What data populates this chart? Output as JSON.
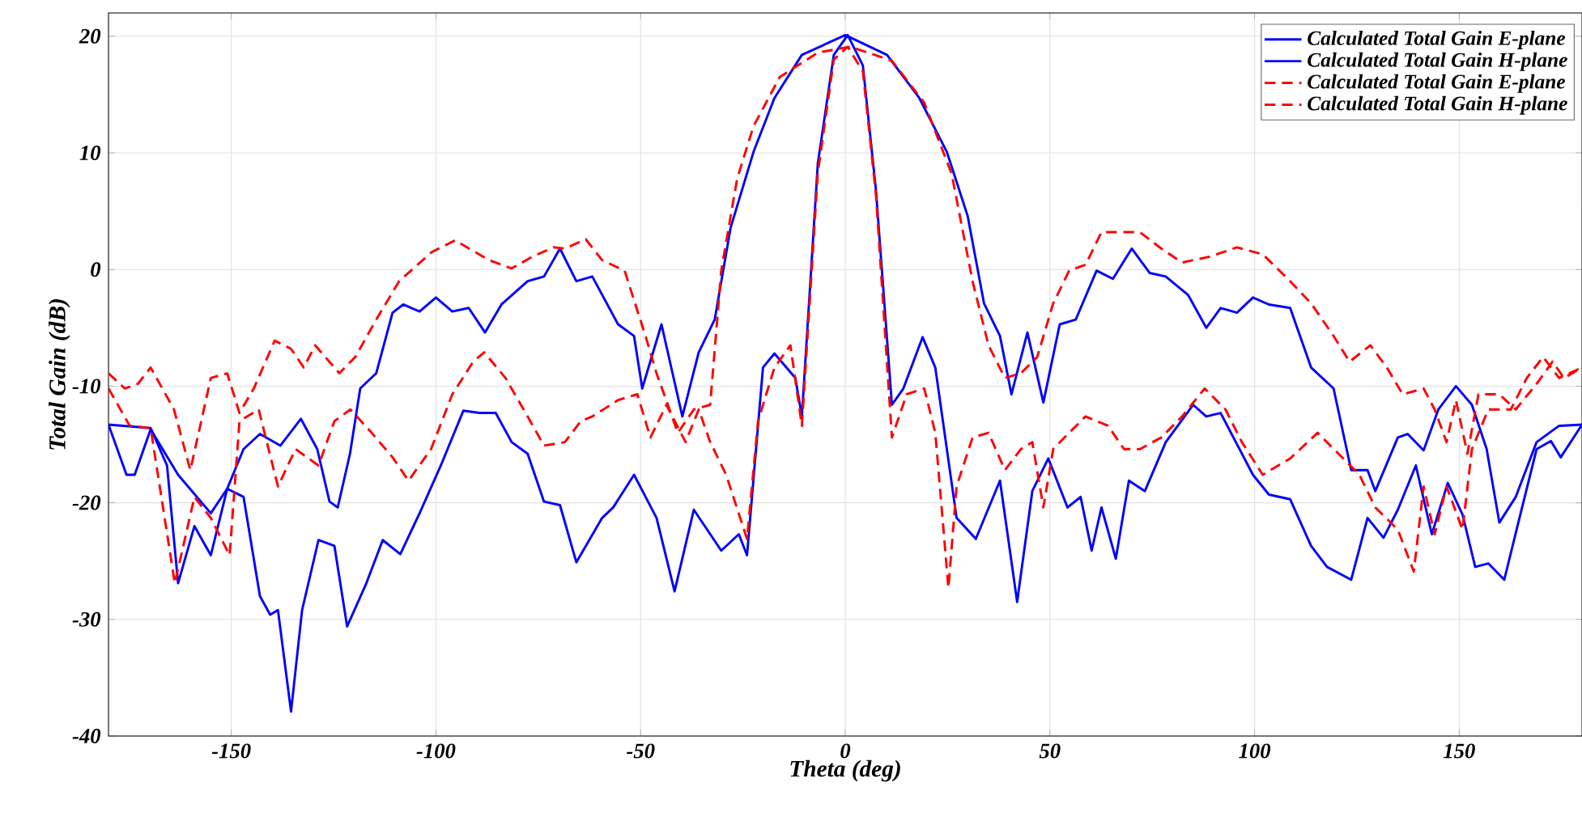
{
  "chart_data": {
    "type": "line",
    "xlabel": "Theta (deg)",
    "ylabel": "Total Gain (dB)",
    "xlim": [
      -180,
      180
    ],
    "ylim": [
      -40,
      22
    ],
    "xticks": [
      -150,
      -100,
      -50,
      0,
      50,
      100,
      150
    ],
    "yticks": [
      -40,
      -30,
      -20,
      -10,
      0,
      10,
      20
    ],
    "grid": true,
    "legend": "top right",
    "marker": "none",
    "series": [
      {
        "name": "Calculated Total Gain E-plane",
        "color": "#0000ff",
        "line_style": "solid",
        "x": [
          -180,
          -175.6,
          -173.6,
          -169.7,
          -163,
          -155,
          -151,
          -147,
          -143,
          -138,
          -133,
          -129,
          -126,
          -124,
          -121,
          -118.5,
          -114.6,
          -110.6,
          -108,
          -104,
          -100,
          -96,
          -92,
          -88,
          -84,
          -77.6,
          -73.6,
          -69.7,
          -65.7,
          -61.8,
          -55.5,
          -51.6,
          -49.6,
          -44.9,
          -39.8,
          -35.8,
          -31.9,
          -28,
          -22.4,
          -17.3,
          -10.6,
          0,
          10.2,
          18.1,
          24.8,
          29.9,
          33.9,
          37.8,
          40.6,
          44.5,
          48.4,
          52.4,
          56.3,
          61.4,
          65.4,
          70,
          74.4,
          78.3,
          83.8,
          88.2,
          91.7,
          95.7,
          99.6,
          103.5,
          108.7,
          113.8,
          119.3,
          123.6,
          127.6,
          129.5,
          135,
          137.4,
          141.3,
          144.9,
          149.2,
          153.1,
          156.7,
          159.8,
          163.8,
          168.9,
          174.4,
          180
        ],
        "values": [
          -13.3,
          -17.6,
          -17.6,
          -13.7,
          -17.6,
          -20.9,
          -18.8,
          -15.4,
          -14.1,
          -15.1,
          -12.8,
          -15.4,
          -19.9,
          -20.4,
          -15.8,
          -10.2,
          -8.9,
          -3.7,
          -3.0,
          -3.6,
          -2.4,
          -3.6,
          -3.3,
          -5.4,
          -3.0,
          -1.0,
          -0.6,
          1.8,
          -1.0,
          -0.6,
          -4.7,
          -5.7,
          -10.2,
          -4.7,
          -12.6,
          -7.1,
          -4.3,
          3.6,
          10.1,
          14.7,
          18.4,
          20.1,
          18.4,
          14.7,
          10.1,
          4.6,
          -2.9,
          -5.7,
          -10.7,
          -5.4,
          -11.4,
          -4.7,
          -4.3,
          -0.1,
          -0.8,
          1.8,
          -0.3,
          -0.6,
          -2.2,
          -5.0,
          -3.3,
          -3.7,
          -2.4,
          -3.0,
          -3.3,
          -8.4,
          -10.2,
          -17.2,
          -17.2,
          -19.0,
          -14.4,
          -14.1,
          -15.5,
          -12.0,
          -10.0,
          -11.6,
          -15.4,
          -21.7,
          -19.5,
          -14.8,
          -13.4,
          -13.3
        ]
      },
      {
        "name": "Calculated Total Gain H-plane",
        "color": "#0000ff",
        "line_style": "solid",
        "x": [
          -180,
          -169.7,
          -165.7,
          -163,
          -159,
          -155,
          -151,
          -147,
          -143,
          -140.5,
          -138.6,
          -135.4,
          -132.7,
          -128.7,
          -124.8,
          -121.7,
          -117,
          -113,
          -108.7,
          -104,
          -98.8,
          -93.3,
          -89.4,
          -85.4,
          -81.5,
          -77.6,
          -73.6,
          -69.7,
          -65.7,
          -59.4,
          -56.7,
          -51.6,
          -46.1,
          -41.7,
          -37,
          -30.3,
          -26,
          -24,
          -20.1,
          -17.3,
          -12.2,
          -10.6,
          -6.7,
          -2.8,
          0.6,
          4.3,
          7.5,
          11.4,
          14.2,
          18.9,
          22,
          27.2,
          31.9,
          37.8,
          42,
          45.7,
          49.6,
          54.3,
          57.5,
          60.2,
          62.6,
          66.1,
          69.3,
          73.2,
          78.3,
          85,
          88.2,
          91.7,
          99.6,
          103.5,
          108.7,
          113.8,
          117.7,
          123.6,
          127.6,
          131.5,
          135,
          139.4,
          143.3,
          147.2,
          150.8,
          153.9,
          157.1,
          161,
          165,
          168.9,
          172.4,
          174.8,
          180
        ],
        "values": [
          -13.3,
          -13.6,
          -16.8,
          -26.9,
          -22,
          -24.5,
          -18.8,
          -19.5,
          -28,
          -29.6,
          -29.2,
          -37.9,
          -29.2,
          -23.2,
          -23.7,
          -30.6,
          -26.9,
          -23.2,
          -24.4,
          -20.9,
          -16.8,
          -12.1,
          -12.3,
          -12.3,
          -14.8,
          -15.8,
          -19.9,
          -20.2,
          -25.1,
          -21.3,
          -20.4,
          -17.6,
          -21.3,
          -27.6,
          -20.6,
          -24.1,
          -22.7,
          -24.5,
          -8.4,
          -7.2,
          -9.3,
          -12.6,
          9.1,
          18.4,
          20.1,
          17.5,
          6.8,
          -11.6,
          -10.2,
          -5.8,
          -8.4,
          -21.3,
          -23.1,
          -18.1,
          -28.5,
          -19,
          -16.2,
          -20.4,
          -19.5,
          -24.1,
          -20.4,
          -24.8,
          -18.1,
          -19,
          -14.8,
          -11.6,
          -12.6,
          -12.3,
          -17.6,
          -19.3,
          -19.7,
          -23.7,
          -25.5,
          -26.6,
          -21.3,
          -23,
          -20.6,
          -16.8,
          -22.7,
          -18.3,
          -21,
          -25.5,
          -25.2,
          -26.6,
          -20.9,
          -15.4,
          -14.7,
          -16.1,
          -13.3
        ]
      },
      {
        "name": "Calculated Total Gain E-plane",
        "color": "#ff0000",
        "line_style": "dashed",
        "x": [
          -180,
          -176,
          -172.8,
          -169.7,
          -164,
          -160,
          -155,
          -151,
          -148,
          -144.5,
          -139.4,
          -135.4,
          -132.3,
          -129.5,
          -123.6,
          -119.7,
          -114.6,
          -109,
          -101,
          -95.3,
          -87,
          -81.5,
          -76.4,
          -71.3,
          -68.5,
          -63.4,
          -59.4,
          -53.9,
          -48.8,
          -46.1,
          -40.9,
          -37,
          -33,
          -30.3,
          -26.4,
          -22.4,
          -16,
          -6.7,
          1.2,
          11.4,
          19.3,
          26,
          31.1,
          35,
          39,
          42.9,
          46.9,
          50.8,
          54.7,
          58.7,
          62.6,
          68.1,
          72,
          77.2,
          82.3,
          89,
          95.7,
          102,
          108.7,
          113.8,
          119.3,
          123.2,
          128.3,
          132.3,
          136.2,
          141.3,
          144,
          146.9,
          149.2,
          152,
          154.7,
          159.8,
          163.8,
          168.9,
          172.8,
          175.6,
          180
        ],
        "values": [
          -8.9,
          -10.2,
          -9.8,
          -8.4,
          -12,
          -17.2,
          -9.3,
          -8.9,
          -12.3,
          -10.2,
          -6.1,
          -6.8,
          -8.4,
          -6.5,
          -8.9,
          -7.5,
          -4.3,
          -1.0,
          1.5,
          2.5,
          0.8,
          0.1,
          1.1,
          1.9,
          1.8,
          2.6,
          0.8,
          -0.1,
          -5.7,
          -8.9,
          -14,
          -12,
          -11.6,
          -0.1,
          7.8,
          12.3,
          16.5,
          18.6,
          19.1,
          17.9,
          14.3,
          8.2,
          -1.0,
          -6.5,
          -9.3,
          -8.9,
          -7.5,
          -2.9,
          -0.1,
          0.4,
          3.2,
          3.2,
          3.2,
          1.8,
          0.6,
          1.1,
          1.9,
          1.3,
          -1.0,
          -2.9,
          -5.7,
          -7.9,
          -6.5,
          -8.4,
          -10.7,
          -10.2,
          -12.0,
          -14.8,
          -11.2,
          -15.8,
          -10.7,
          -10.7,
          -12.0,
          -9.8,
          -7.9,
          -9.3,
          -8.4
        ]
      },
      {
        "name": "Calculated Total Gain H-plane",
        "color": "#ff0000",
        "line_style": "dashed",
        "x": [
          -180,
          -174.8,
          -169.7,
          -163.8,
          -159,
          -155,
          -150.4,
          -148,
          -143.3,
          -138.6,
          -134.3,
          -128.7,
          -124.8,
          -120.9,
          -115.7,
          -110.6,
          -106.7,
          -101.2,
          -96,
          -90.9,
          -88.2,
          -83,
          -77.6,
          -73.6,
          -68.5,
          -64.6,
          -61.8,
          -55.5,
          -50.8,
          -47.6,
          -43.7,
          -39,
          -35.8,
          -33,
          -29.1,
          -24,
          -21.3,
          -17.3,
          -13.4,
          -10.6,
          -6.7,
          -2.8,
          0.6,
          4.3,
          7.5,
          11.4,
          15,
          19.3,
          22,
          25.2,
          27.2,
          31.1,
          35,
          39,
          42.9,
          45.7,
          48.4,
          50.8,
          54.7,
          58.7,
          64.2,
          68.1,
          72,
          77.2,
          82.3,
          87.8,
          92.9,
          96.9,
          102,
          108.7,
          115.4,
          120.5,
          125.6,
          129.5,
          135,
          138.9,
          141.3,
          144,
          146.9,
          150.8,
          153.1,
          157.1,
          162.6,
          166.5,
          170.5,
          174.4,
          180
        ],
        "values": [
          -10.2,
          -13.4,
          -13.6,
          -26.9,
          -19.5,
          -21.3,
          -24.5,
          -13,
          -12,
          -18.6,
          -15.4,
          -16.8,
          -13,
          -12,
          -14,
          -16.1,
          -18.1,
          -15.4,
          -10.7,
          -7.9,
          -7.1,
          -9.3,
          -12.6,
          -15.1,
          -14.8,
          -13,
          -12.6,
          -11.2,
          -10.7,
          -14.4,
          -11.6,
          -14.8,
          -12,
          -14.8,
          -17.6,
          -23.1,
          -13,
          -8.4,
          -6.5,
          -13.4,
          8.3,
          18,
          19.1,
          17,
          6.4,
          -14.4,
          -10.7,
          -10.2,
          -14,
          -27.3,
          -18.6,
          -14.4,
          -14,
          -17.2,
          -15.4,
          -14.8,
          -20.4,
          -15.4,
          -14,
          -12.6,
          -13.4,
          -15.4,
          -15.4,
          -14.4,
          -12.6,
          -10.2,
          -12,
          -14.8,
          -17.6,
          -16.2,
          -14,
          -15.8,
          -17.6,
          -20.4,
          -22.3,
          -25.9,
          -18.6,
          -22.7,
          -18.6,
          -22.3,
          -15.4,
          -12,
          -12,
          -9.3,
          -7.5,
          -9.3,
          -8.4
        ]
      }
    ]
  }
}
